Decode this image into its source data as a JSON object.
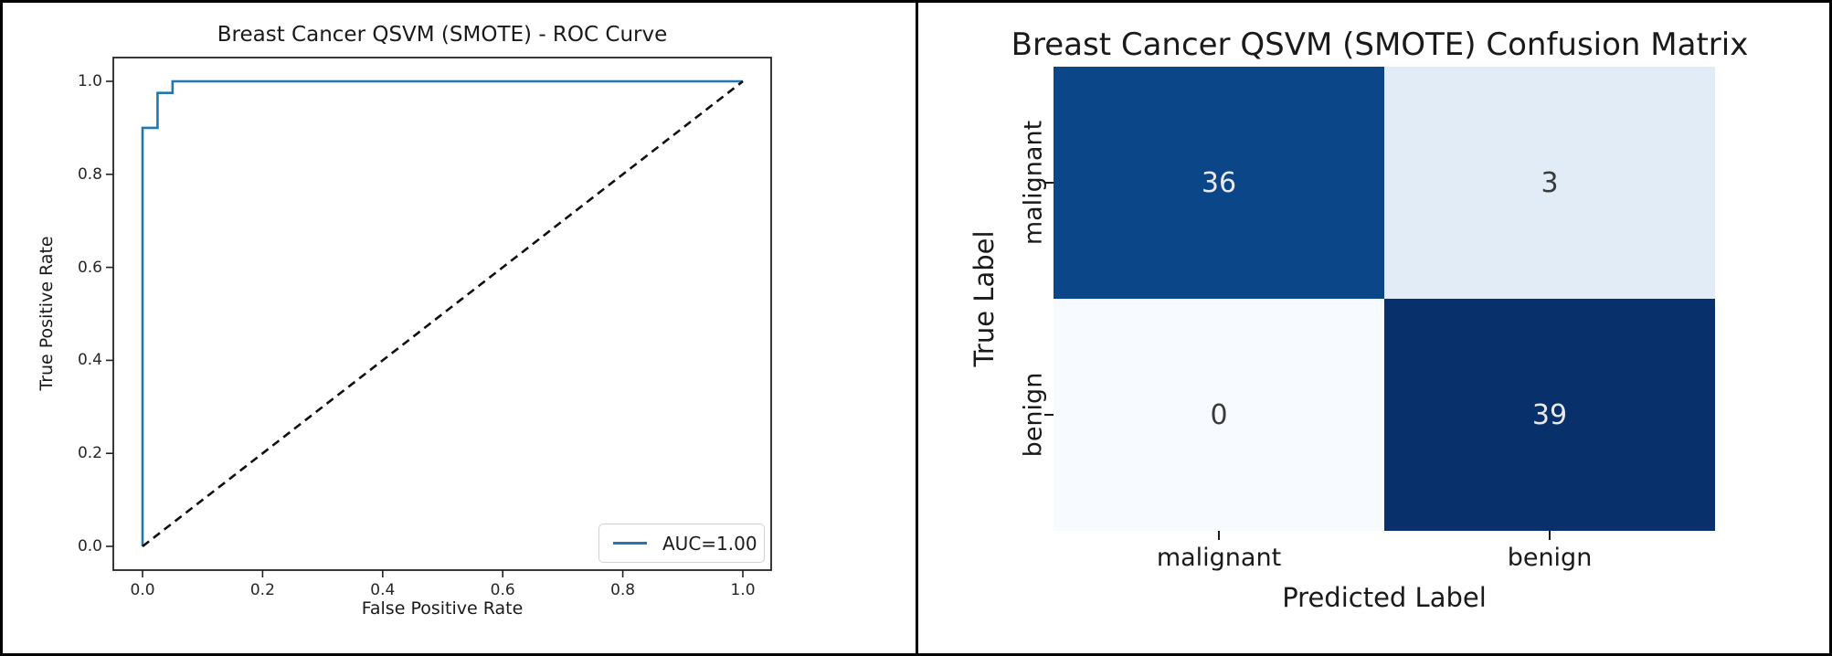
{
  "chart_data": [
    {
      "type": "line",
      "title": "Breast Cancer QSVM (SMOTE) - ROC Curve",
      "xlabel": "False Positive Rate",
      "ylabel": "True Positive Rate",
      "xlim": [
        0,
        1
      ],
      "ylim": [
        0,
        1
      ],
      "x_tick_labels": [
        "0.0",
        "0.2",
        "0.4",
        "0.6",
        "0.8",
        "1.0"
      ],
      "y_tick_labels": [
        "0.0",
        "0.2",
        "0.4",
        "0.6",
        "0.8",
        "1.0"
      ],
      "grid": "off",
      "legend_position": "lower right",
      "series": [
        {
          "name": "AUC=1.00",
          "color": "#1f77b4",
          "style": "solid",
          "x": [
            0,
            0,
            0.025,
            0.025,
            0.05,
            0.05,
            1.0
          ],
          "y": [
            0,
            0.9,
            0.9,
            0.975,
            0.975,
            1.0,
            1.0
          ]
        },
        {
          "name": "chance-diagonal",
          "color": "#111111",
          "style": "dashed",
          "x": [
            0,
            1
          ],
          "y": [
            0,
            1
          ]
        }
      ]
    },
    {
      "type": "heatmap",
      "title": "Breast Cancer QSVM (SMOTE) Confusion Matrix",
      "xlabel": "Predicted Label",
      "ylabel": "True Label",
      "x_categories": [
        "malignant",
        "benign"
      ],
      "y_categories": [
        "malignant",
        "benign"
      ],
      "values": [
        [
          36,
          3
        ],
        [
          0,
          39
        ]
      ],
      "colormap": "Blues",
      "cell_colors": [
        [
          "#0b4689",
          "#e2ecf7"
        ],
        [
          "#f7fbff",
          "#08306b"
        ]
      ],
      "text_colors": [
        [
          "#e9e9e9",
          "#3a3a3a"
        ],
        [
          "#3a3a3a",
          "#e9e9e9"
        ]
      ]
    }
  ]
}
